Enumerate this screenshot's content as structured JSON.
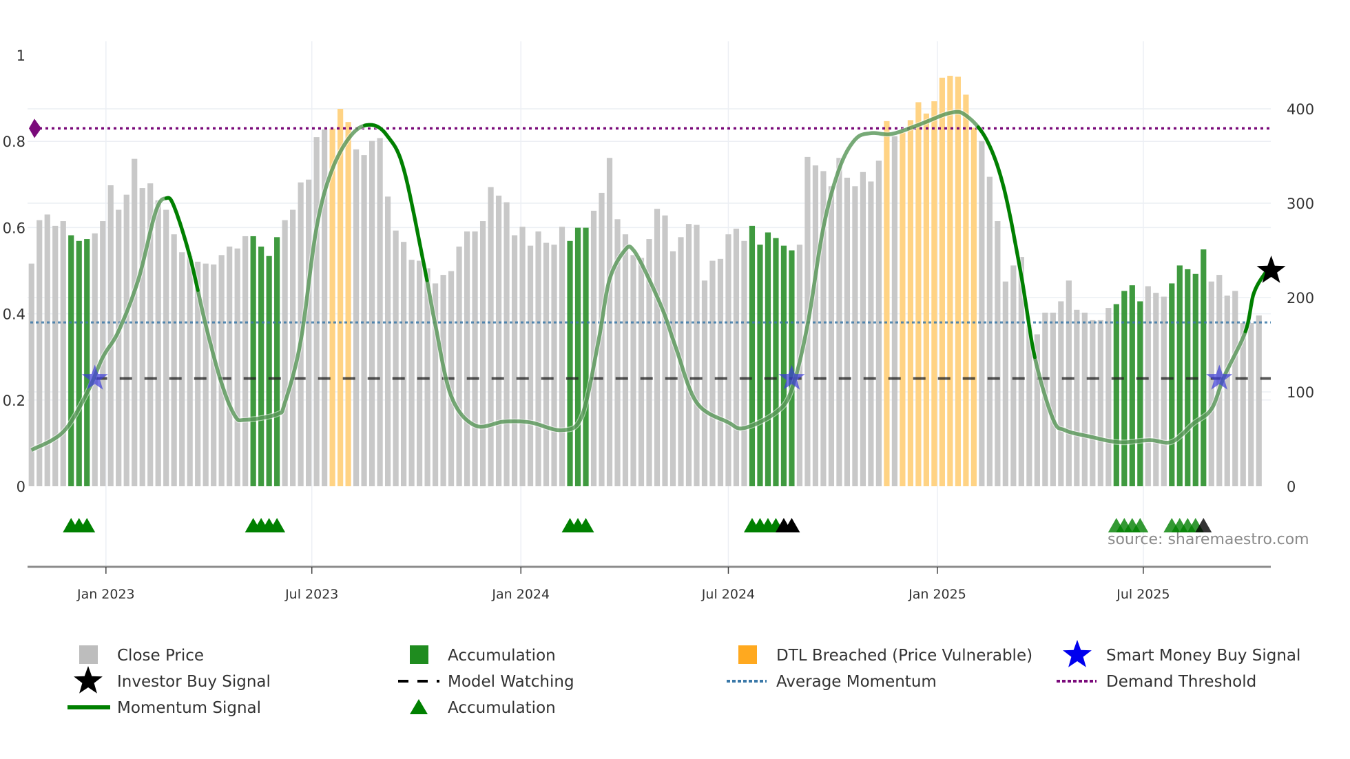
{
  "chart_data": {
    "type": "bar",
    "title": "",
    "xlabel": "",
    "ylabel_left": "",
    "ylabel_right": "",
    "left_axis": {
      "range": [
        0,
        1
      ],
      "ticks": [
        0,
        0.2,
        0.4,
        0.6,
        0.8,
        1
      ],
      "tick_labels": [
        "0",
        "0.2",
        "0.4",
        "0.6",
        "0.8",
        "1"
      ]
    },
    "right_axis": {
      "range": [
        0,
        400
      ],
      "ticks": [
        0,
        100,
        200,
        300,
        400
      ],
      "tick_labels": [
        "0",
        "100",
        "200",
        "300",
        "400"
      ]
    },
    "x_axis": {
      "unit": "weekly bar index",
      "range": [
        -0.5,
        156.5
      ],
      "ticks": [
        {
          "pos": 9.4,
          "label": "Jan 2023"
        },
        {
          "pos": 35.4,
          "label": "Jul 2023"
        },
        {
          "pos": 61.8,
          "label": "Jan 2024"
        },
        {
          "pos": 88.0,
          "label": "Jul 2024"
        },
        {
          "pos": 114.4,
          "label": "Jan 2025"
        },
        {
          "pos": 140.4,
          "label": "Jul 2025"
        }
      ]
    },
    "close_price": [
      236,
      282,
      288,
      276,
      281,
      266,
      260,
      262,
      268,
      281,
      319,
      293,
      309,
      347,
      316,
      321,
      303,
      293,
      267,
      248,
      244,
      238,
      236,
      235,
      245,
      254,
      252,
      265,
      265,
      254,
      244,
      264,
      282,
      293,
      322,
      325,
      370,
      378,
      379,
      400,
      386,
      357,
      351,
      366,
      369,
      307,
      271,
      259,
      240,
      239,
      231,
      215,
      224,
      228,
      254,
      270,
      270,
      281,
      317,
      308,
      301,
      266,
      275,
      255,
      270,
      258,
      256,
      275,
      260,
      274,
      274,
      292,
      311,
      348,
      283,
      267,
      245,
      242,
      262,
      294,
      287,
      249,
      264,
      278,
      277,
      218,
      239,
      241,
      267,
      273,
      260,
      276,
      256,
      269,
      263,
      255,
      250,
      256,
      349,
      340,
      334,
      318,
      348,
      327,
      318,
      333,
      323,
      345,
      387,
      371,
      375,
      388,
      407,
      395,
      408,
      433,
      435,
      434,
      415,
      380,
      366,
      328,
      281,
      217,
      234,
      243,
      171,
      161,
      184,
      184,
      196,
      218,
      187,
      184,
      176,
      176,
      189,
      193,
      207,
      213,
      196,
      212,
      205,
      201,
      215,
      234,
      230,
      225,
      251,
      217,
      224,
      202,
      207,
      173,
      173,
      181
    ],
    "accumulation_bars": [
      5,
      6,
      7,
      28,
      29,
      30,
      31,
      68,
      69,
      70,
      91,
      92,
      93,
      94,
      95,
      96,
      137,
      138,
      139,
      140,
      144,
      145,
      146,
      147,
      148
    ],
    "dtl_breached_bars": [
      38,
      39,
      40,
      108,
      110,
      111,
      112,
      113,
      114,
      115,
      116,
      117,
      118,
      119
    ],
    "momentum_signal": [
      [
        0,
        0.084
      ],
      [
        4,
        0.126
      ],
      [
        7,
        0.216
      ],
      [
        9,
        0.299
      ],
      [
        11,
        0.36
      ],
      [
        13.5,
        0.48
      ],
      [
        15.7,
        0.638
      ],
      [
        17,
        0.668
      ],
      [
        18,
        0.649
      ],
      [
        20,
        0.533
      ],
      [
        22,
        0.374
      ],
      [
        24,
        0.239
      ],
      [
        25.7,
        0.163
      ],
      [
        27,
        0.154
      ],
      [
        31,
        0.167
      ],
      [
        32,
        0.194
      ],
      [
        34,
        0.337
      ],
      [
        36,
        0.6
      ],
      [
        38,
        0.736
      ],
      [
        40.6,
        0.819
      ],
      [
        43,
        0.838
      ],
      [
        45,
        0.811
      ],
      [
        47,
        0.736
      ],
      [
        49.6,
        0.51
      ],
      [
        51,
        0.374
      ],
      [
        53,
        0.209
      ],
      [
        56,
        0.141
      ],
      [
        59.7,
        0.15
      ],
      [
        63,
        0.148
      ],
      [
        67,
        0.13
      ],
      [
        69.5,
        0.163
      ],
      [
        71.6,
        0.337
      ],
      [
        73,
        0.48
      ],
      [
        75,
        0.549
      ],
      [
        76,
        0.548
      ],
      [
        77.6,
        0.495
      ],
      [
        79.8,
        0.405
      ],
      [
        81.4,
        0.32
      ],
      [
        84,
        0.194
      ],
      [
        88,
        0.148
      ],
      [
        90,
        0.135
      ],
      [
        94,
        0.171
      ],
      [
        96,
        0.224
      ],
      [
        98,
        0.374
      ],
      [
        100,
        0.6
      ],
      [
        102,
        0.736
      ],
      [
        104,
        0.804
      ],
      [
        106,
        0.819
      ],
      [
        108.6,
        0.817
      ],
      [
        112,
        0.838
      ],
      [
        116,
        0.866
      ],
      [
        118,
        0.86
      ],
      [
        120.6,
        0.804
      ],
      [
        122.8,
        0.691
      ],
      [
        125,
        0.487
      ],
      [
        126.7,
        0.299
      ],
      [
        129,
        0.156
      ],
      [
        130.5,
        0.13
      ],
      [
        133.7,
        0.115
      ],
      [
        137.4,
        0.102
      ],
      [
        141.2,
        0.107
      ],
      [
        144,
        0.103
      ],
      [
        146.7,
        0.145
      ],
      [
        149,
        0.179
      ],
      [
        150.6,
        0.254
      ],
      [
        153.3,
        0.359
      ],
      [
        154.4,
        0.45
      ],
      [
        156.2,
        0.505
      ]
    ],
    "momentum_emphasis_ranges": [
      [
        17,
        21
      ],
      [
        42,
        50
      ],
      [
        119.5,
        126.7
      ],
      [
        153.3,
        156.2
      ]
    ],
    "average_momentum": 0.38,
    "demand_threshold": 0.83,
    "model_watching": {
      "level": 0.25,
      "start": 8
    },
    "smart_money_buy_signals": [
      [
        8,
        0.25
      ],
      [
        96,
        0.25
      ],
      [
        150,
        0.25
      ]
    ],
    "investor_buy_signals": [
      [
        156.2,
        0.5
      ]
    ],
    "accumulation_markers": {
      "green": [
        5,
        6,
        7,
        28,
        29,
        30,
        31,
        68,
        69,
        70,
        91,
        92,
        93,
        94,
        137,
        138,
        139,
        140,
        144,
        145,
        146,
        147
      ],
      "black": [
        95,
        96,
        148
      ],
      "faded_from": 137
    },
    "legend": {
      "placement": "bottom",
      "items": [
        {
          "label": "Close Price",
          "symbol": "gray-bar"
        },
        {
          "label": "Accumulation",
          "symbol": "green-bar"
        },
        {
          "label": "DTL Breached (Price Vulnerable)",
          "symbol": "orange-bar"
        },
        {
          "label": "Smart Money Buy Signal",
          "symbol": "blue-star"
        },
        {
          "label": "Investor Buy Signal",
          "symbol": "black-star"
        },
        {
          "label": "Model Watching",
          "symbol": "black-dash"
        },
        {
          "label": "Average Momentum",
          "symbol": "blue-dot"
        },
        {
          "label": "Demand Threshold",
          "symbol": "purple-dot"
        },
        {
          "label": "Momentum Signal",
          "symbol": "green-line"
        },
        {
          "label": "Accumulation",
          "symbol": "green-triangle"
        }
      ]
    },
    "annotation": "source: sharemaestro.com"
  },
  "colors": {
    "close": "#c8c8c8",
    "accumulation": "#2a8f2a",
    "dtl": "#ffd384",
    "dtl_legend": "#ffa91f",
    "momentum": "#008000",
    "average": "#3a78a8",
    "demand": "#7a0a7a",
    "smart_money": "#3c3cd8",
    "grid": "#eceff4"
  }
}
